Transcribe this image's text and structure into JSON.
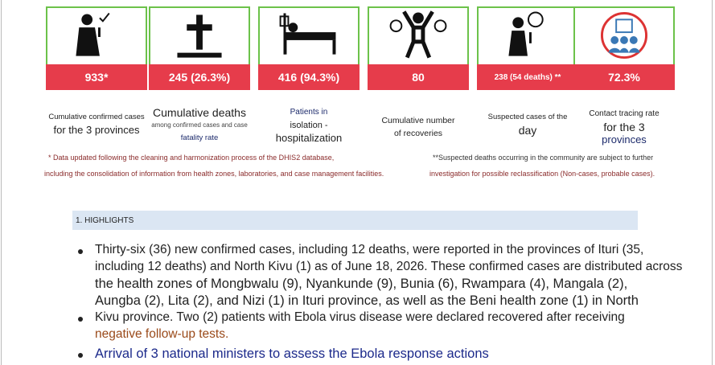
{
  "cards": [
    {
      "value": "933*",
      "label": [
        "Cumulative confirmed cases",
        "for the 3 provinces"
      ]
    },
    {
      "value": "245 (26.3%)",
      "label": [
        "Cumulative deaths",
        "among confirmed cases and case",
        "fatality rate"
      ]
    },
    {
      "value": "416 (94.3%)",
      "label": [
        "Patients in",
        "isolation -",
        "hospitalization"
      ]
    },
    {
      "value": "80",
      "label": [
        "Cumulative number",
        "of recoveries"
      ]
    },
    {
      "value": "238 (54 deaths) **",
      "label": [
        "Suspected cases of the",
        "day"
      ]
    },
    {
      "value": "72.3%",
      "label": [
        "Contact tracing rate",
        "for the 3",
        "provinces"
      ]
    }
  ],
  "footnotes": {
    "left": [
      "* Data updated following the cleaning and harmonization process of the DHIS2 database,",
      "including the consolidation of information from health zones, laboratories, and case management facilities."
    ],
    "right": [
      "**Suspected deaths occurring in the community are subject to further",
      "investigation for possible reclassification (Non-cases, probable cases)."
    ]
  },
  "highlights": {
    "title": "1. HIGHLIGHTS",
    "bullets": [
      [
        "Thirty-six (36) new confirmed cases, including 12 deaths, were reported in the provinces of Ituri (35,",
        "including 12 deaths) and North Kivu (1) as of June 18, 2026. These confirmed cases are distributed across",
        "the health zones of Mongbwalu (9), Nyankunde (9), Bunia (6), Rwampara (4), Mangala (2),",
        "Aungba (2), Lita (2), and Nizi (1) in Ituri province, as well as the Beni health zone (1) in North"
      ],
      [
        "Kivu province. Two (2) patients with Ebola virus disease were declared recovered after receiving",
        "negative follow-up tests."
      ],
      [
        "Arrival of 3 national ministers to assess the Ebola response actions"
      ]
    ]
  }
}
